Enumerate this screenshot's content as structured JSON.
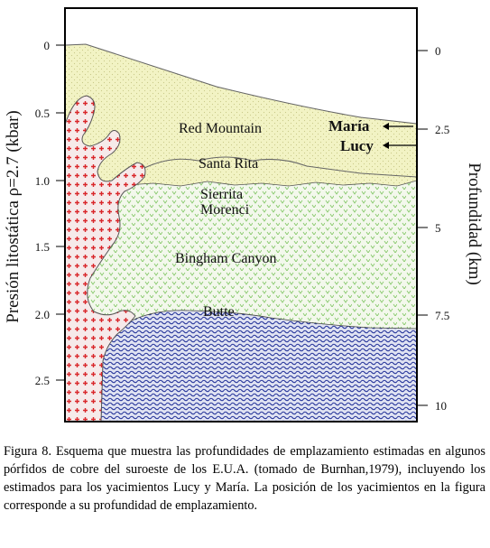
{
  "diagram": {
    "axes": {
      "left_title": "Presión litostática ρ=2.7 (kbar)",
      "right_title": "Profundidad (km)",
      "left_ticks": [
        "0",
        "0.5",
        "1.0",
        "1.5",
        "2.0",
        "2.5"
      ],
      "right_ticks": [
        "0",
        "2.5",
        "5",
        "7.5",
        "10"
      ]
    },
    "deposits": [
      "Red Mountain",
      "Santa Rita",
      "Sierrita",
      "Morenci",
      "Bingham Canyon",
      "Butte"
    ],
    "markers": [
      "María",
      "Lucy"
    ],
    "colors": {
      "upper_zone": "#f2f3c4",
      "middle_zone": "#bfe5a1",
      "lower_zone": "#1f2e8c",
      "intrusion_fill": "#f6eaea",
      "intrusion_cross": "#d9262a",
      "border": "#000000"
    }
  },
  "caption": "Figura 8. Esquema que muestra las profundidades de emplazamiento estimadas en algunos pórfidos de cobre del suroeste de los E.U.A. (tomado de Burnhan,1979), incluyendo los estimados para los yacimientos Lucy y María. La posición de los yacimientos en la figura corresponde a su profundidad de emplazamiento."
}
